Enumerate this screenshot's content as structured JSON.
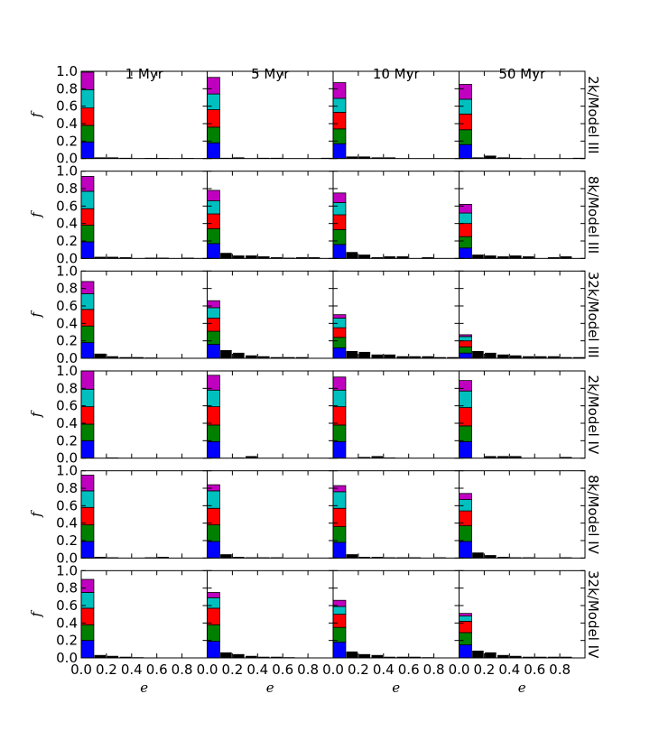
{
  "chart_data": {
    "type": "bar",
    "stacked": true,
    "layout_grid": "6 rows x 4 columns of panels",
    "xlabel": "e",
    "ylabel": "f",
    "xlim": [
      0,
      1
    ],
    "ylim": [
      0,
      1
    ],
    "x_ticks": [
      "0.0",
      "0.2",
      "0.4",
      "0.6",
      "0.8"
    ],
    "y_ticks": [
      "0.0",
      "0.2",
      "0.4",
      "0.6",
      "0.8",
      "1.0"
    ],
    "bin_width": 0.1,
    "column_titles": [
      "1 Myr",
      "5 Myr",
      "10 Myr",
      "50 Myr"
    ],
    "row_labels": [
      "2k/Model III",
      "8k/Model III",
      "32k/Model III",
      "2k/Model IV",
      "8k/Model IV",
      "32k/Model IV"
    ],
    "colors": {
      "layers": [
        "#0000ff",
        "#008000",
        "#ff0000",
        "#00bfbf",
        "#bf00bf"
      ],
      "residual": "#000000"
    },
    "grid": false,
    "panels": [
      [
        {
          "first": [
            0.19,
            0.19,
            0.2,
            0.21,
            0.2
          ],
          "rest": [
            0.01,
            0.01,
            0.005,
            0,
            0.003,
            0.003,
            0,
            0.002,
            0
          ]
        },
        {
          "first": [
            0.18,
            0.18,
            0.2,
            0.18,
            0.19
          ],
          "rest": [
            0.005,
            0.01,
            0,
            0.005,
            0.005,
            0,
            0,
            0,
            0.005
          ]
        },
        {
          "first": [
            0.17,
            0.17,
            0.19,
            0.16,
            0.18
          ],
          "rest": [
            0.02,
            0.02,
            0.01,
            0.01,
            0,
            0,
            0,
            0,
            0
          ]
        },
        {
          "first": [
            0.16,
            0.17,
            0.18,
            0.17,
            0.17
          ],
          "rest": [
            0.01,
            0.03,
            0.01,
            0.005,
            0,
            0,
            0,
            0,
            0.005
          ]
        }
      ],
      [
        {
          "first": [
            0.19,
            0.19,
            0.19,
            0.2,
            0.17
          ],
          "rest": [
            0.015,
            0.015,
            0.01,
            0,
            0.005,
            0.005,
            0,
            0.005,
            0
          ]
        },
        {
          "first": [
            0.17,
            0.17,
            0.17,
            0.15,
            0.12
          ],
          "rest": [
            0.06,
            0.03,
            0.03,
            0.02,
            0.01,
            0.005,
            0.01,
            0.01,
            0
          ]
        },
        {
          "first": [
            0.16,
            0.17,
            0.17,
            0.14,
            0.11
          ],
          "rest": [
            0.07,
            0.04,
            0.01,
            0.02,
            0.02,
            0,
            0.01,
            0,
            0
          ]
        },
        {
          "first": [
            0.12,
            0.13,
            0.15,
            0.12,
            0.1
          ],
          "rest": [
            0.04,
            0.03,
            0.02,
            0.03,
            0.02,
            0,
            0.01,
            0.02,
            0
          ]
        }
      ],
      [
        {
          "first": [
            0.18,
            0.19,
            0.19,
            0.18,
            0.14
          ],
          "rest": [
            0.05,
            0.02,
            0.01,
            0.01,
            0.005,
            0,
            0,
            0,
            0
          ]
        },
        {
          "first": [
            0.16,
            0.15,
            0.15,
            0.12,
            0.08
          ],
          "rest": [
            0.09,
            0.06,
            0.03,
            0.02,
            0.01,
            0.01,
            0.01,
            0,
            0
          ]
        },
        {
          "first": [
            0.12,
            0.12,
            0.11,
            0.11,
            0.04
          ],
          "rest": [
            0.08,
            0.07,
            0.04,
            0.04,
            0.02,
            0.02,
            0.02,
            0.01,
            0.01
          ]
        },
        {
          "first": [
            0.06,
            0.07,
            0.07,
            0.05,
            0.02
          ],
          "rest": [
            0.08,
            0.06,
            0.04,
            0.03,
            0.02,
            0.02,
            0.02,
            0.01,
            0.01
          ]
        }
      ],
      [
        {
          "first": [
            0.2,
            0.19,
            0.2,
            0.2,
            0.21
          ],
          "rest": [
            0,
            0.005,
            0,
            0,
            0,
            0,
            0,
            0,
            0
          ]
        },
        {
          "first": [
            0.19,
            0.19,
            0.21,
            0.19,
            0.17
          ],
          "rest": [
            0,
            0.005,
            0.02,
            0,
            0,
            0,
            0,
            0,
            0
          ]
        },
        {
          "first": [
            0.19,
            0.19,
            0.21,
            0.19,
            0.15
          ],
          "rest": [
            0,
            0.01,
            0.02,
            0.005,
            0,
            0,
            0,
            0,
            0
          ]
        },
        {
          "first": [
            0.19,
            0.18,
            0.21,
            0.19,
            0.12
          ],
          "rest": [
            0,
            0.02,
            0.02,
            0.02,
            0,
            0,
            0,
            0.01,
            0
          ]
        }
      ],
      [
        {
          "first": [
            0.19,
            0.19,
            0.2,
            0.19,
            0.18
          ],
          "rest": [
            0.01,
            0.005,
            0,
            0,
            0.005,
            0.01,
            0,
            0,
            0
          ]
        },
        {
          "first": [
            0.19,
            0.19,
            0.19,
            0.2,
            0.07
          ],
          "rest": [
            0.04,
            0.01,
            0.005,
            0.005,
            0.005,
            0,
            0,
            0,
            0
          ]
        },
        {
          "first": [
            0.18,
            0.18,
            0.21,
            0.19,
            0.07
          ],
          "rest": [
            0.04,
            0.01,
            0.01,
            0.005,
            0.005,
            0.005,
            0,
            0.005,
            0
          ]
        },
        {
          "first": [
            0.19,
            0.18,
            0.17,
            0.13,
            0.07
          ],
          "rest": [
            0.06,
            0.03,
            0.01,
            0.005,
            0.005,
            0,
            0,
            0.005,
            0
          ]
        }
      ],
      [
        {
          "first": [
            0.2,
            0.18,
            0.19,
            0.18,
            0.15
          ],
          "rest": [
            0.03,
            0.02,
            0.01,
            0.005,
            0,
            0,
            0,
            0,
            0
          ]
        },
        {
          "first": [
            0.19,
            0.19,
            0.19,
            0.12,
            0.06
          ],
          "rest": [
            0.06,
            0.04,
            0.02,
            0.01,
            0.01,
            0.005,
            0,
            0,
            0
          ]
        },
        {
          "first": [
            0.18,
            0.17,
            0.15,
            0.09,
            0.07
          ],
          "rest": [
            0.07,
            0.04,
            0.03,
            0.01,
            0.01,
            0.01,
            0.005,
            0,
            0
          ]
        },
        {
          "first": [
            0.15,
            0.14,
            0.13,
            0.06,
            0.03
          ],
          "rest": [
            0.08,
            0.06,
            0.03,
            0.02,
            0.01,
            0.01,
            0.01,
            0.01,
            0
          ]
        }
      ]
    ]
  }
}
